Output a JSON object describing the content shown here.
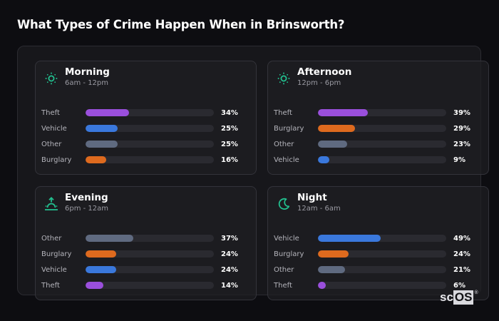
{
  "page": {
    "title": "What Types of Crime Happen When in Brinsworth?"
  },
  "colors": {
    "accent_icon": "#22c08f",
    "Theft": "#9a4fdc",
    "Vehicle": "#3a78dc",
    "Other": "#5f6a80",
    "Burglary": "#de6a1e",
    "track": "#2a2a30"
  },
  "cards": [
    {
      "name": "Morning",
      "range": "6am - 12pm",
      "icon": "sun-icon",
      "rows": [
        {
          "label": "Theft",
          "value": 34,
          "display": "34%"
        },
        {
          "label": "Vehicle",
          "value": 25,
          "display": "25%"
        },
        {
          "label": "Other",
          "value": 25,
          "display": "25%"
        },
        {
          "label": "Burglary",
          "value": 16,
          "display": "16%"
        }
      ]
    },
    {
      "name": "Afternoon",
      "range": "12pm - 6pm",
      "icon": "sun-icon",
      "rows": [
        {
          "label": "Theft",
          "value": 39,
          "display": "39%"
        },
        {
          "label": "Burglary",
          "value": 29,
          "display": "29%"
        },
        {
          "label": "Other",
          "value": 23,
          "display": "23%"
        },
        {
          "label": "Vehicle",
          "value": 9,
          "display": "9%"
        }
      ]
    },
    {
      "name": "Evening",
      "range": "6pm - 12am",
      "icon": "sunset-icon",
      "rows": [
        {
          "label": "Other",
          "value": 37,
          "display": "37%"
        },
        {
          "label": "Burglary",
          "value": 24,
          "display": "24%"
        },
        {
          "label": "Vehicle",
          "value": 24,
          "display": "24%"
        },
        {
          "label": "Theft",
          "value": 14,
          "display": "14%"
        }
      ]
    },
    {
      "name": "Night",
      "range": "12am - 6am",
      "icon": "moon-icon",
      "rows": [
        {
          "label": "Vehicle",
          "value": 49,
          "display": "49%"
        },
        {
          "label": "Burglary",
          "value": 24,
          "display": "24%"
        },
        {
          "label": "Other",
          "value": 21,
          "display": "21%"
        },
        {
          "label": "Theft",
          "value": 6,
          "display": "6%"
        }
      ]
    }
  ],
  "logo": {
    "part1": "sc",
    "part2": "OS",
    "mark": "®"
  },
  "chart_data": {
    "type": "bar",
    "title": "What Types of Crime Happen When in Brinsworth?",
    "orientation": "horizontal",
    "xlabel": "",
    "ylabel": "",
    "xlim": [
      0,
      100
    ],
    "grid": false,
    "legend": "none",
    "panels": [
      {
        "title": "Morning",
        "subtitle": "6am - 12pm",
        "categories": [
          "Theft",
          "Vehicle",
          "Other",
          "Burglary"
        ],
        "values": [
          34,
          25,
          25,
          16
        ]
      },
      {
        "title": "Afternoon",
        "subtitle": "12pm - 6pm",
        "categories": [
          "Theft",
          "Burglary",
          "Other",
          "Vehicle"
        ],
        "values": [
          39,
          29,
          23,
          9
        ]
      },
      {
        "title": "Evening",
        "subtitle": "6pm - 12am",
        "categories": [
          "Other",
          "Burglary",
          "Vehicle",
          "Theft"
        ],
        "values": [
          37,
          24,
          24,
          14
        ]
      },
      {
        "title": "Night",
        "subtitle": "12am - 6am",
        "categories": [
          "Vehicle",
          "Burglary",
          "Other",
          "Theft"
        ],
        "values": [
          49,
          24,
          21,
          6
        ]
      }
    ],
    "series_colors": {
      "Theft": "#9a4fdc",
      "Vehicle": "#3a78dc",
      "Other": "#5f6a80",
      "Burglary": "#de6a1e"
    }
  }
}
